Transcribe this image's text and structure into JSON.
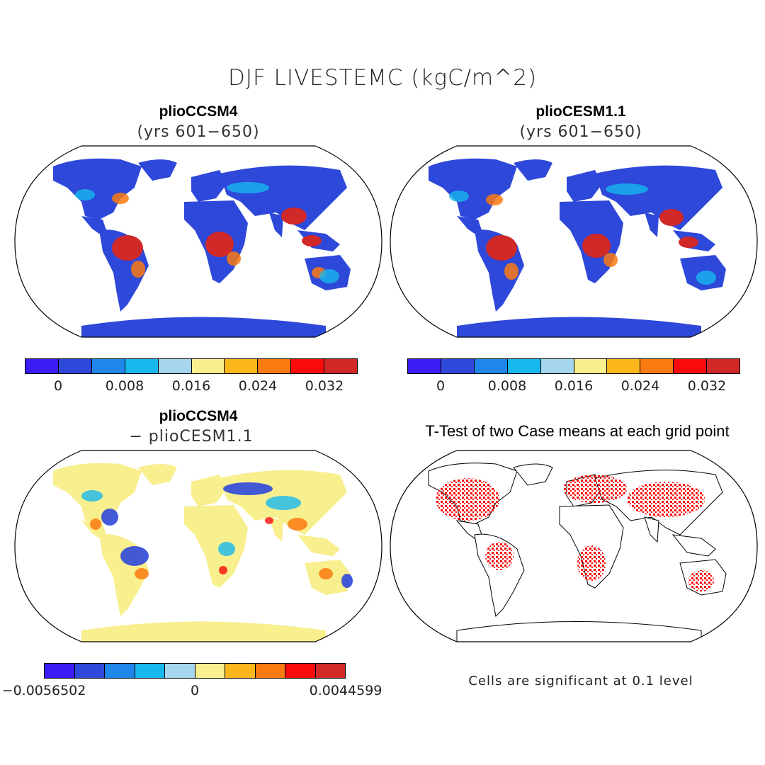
{
  "title": "DJF LIVESTEMC (kgC/m^2)",
  "panels": {
    "p1": {
      "title": "plioCCSM4",
      "subtitle": "(yrs 601−650)"
    },
    "p2": {
      "title": "plioCESM1.1",
      "subtitle": "(yrs 601−650)"
    },
    "p3": {
      "title": "plioCCSM4",
      "subtitle": "− plioCESM1.1"
    },
    "p4": {
      "title": "T-Test of two Case means at each grid point",
      "note": "Cells are significant at 0.1 level"
    }
  },
  "colorbars": {
    "colors": [
      "#3a1cf5",
      "#2e48da",
      "#1f86ea",
      "#17b8ee",
      "#a6d6ee",
      "#f8ef8e",
      "#fbb61c",
      "#fb7a12",
      "#f90b0b",
      "#d12828"
    ],
    "cb1_ticks": [
      "0",
      "0.008",
      "0.016",
      "0.024",
      "0.032"
    ],
    "cb2_ticks": [
      "0",
      "0.008",
      "0.016",
      "0.024",
      "0.032"
    ],
    "cb3_ticks": [
      "−0.0056502",
      "0",
      "0.0044599"
    ]
  }
}
